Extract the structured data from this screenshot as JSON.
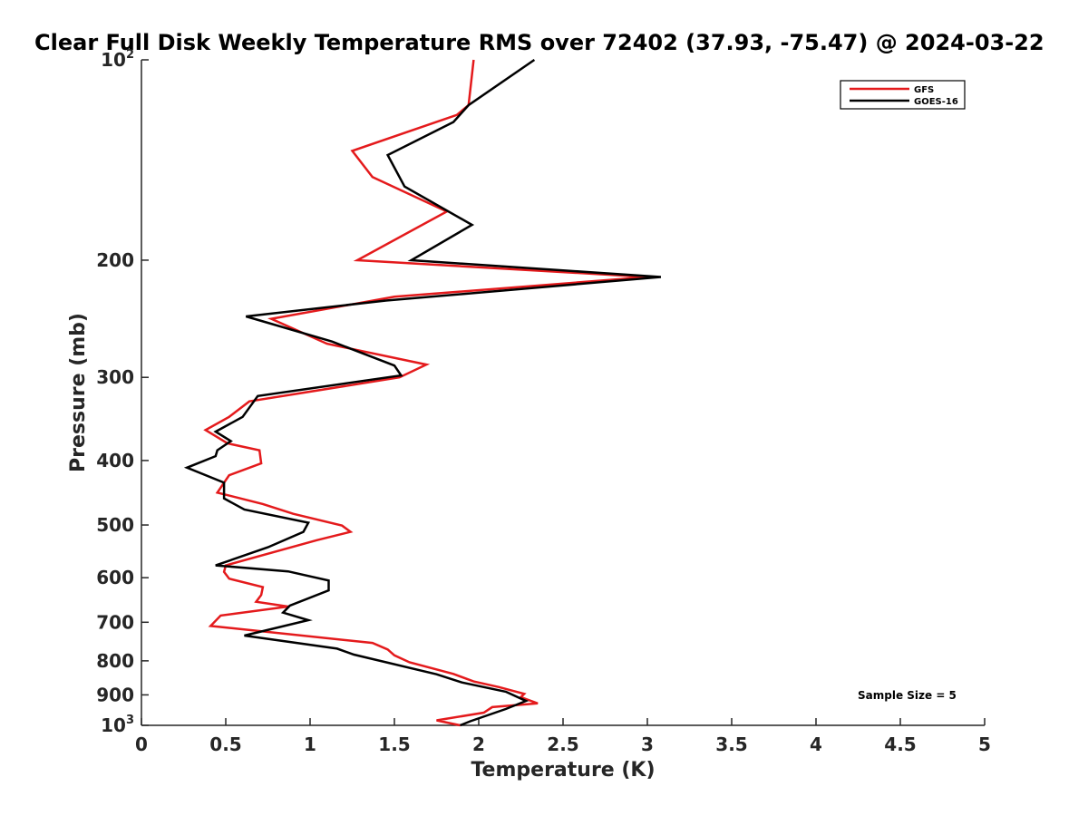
{
  "chart_data": {
    "type": "line",
    "title": "Clear Full Disk Weekly Temperature RMS over 72402 (37.93, -75.47) @ 2024-03-22",
    "xlabel": "Temperature (K)",
    "ylabel": "Pressure (mb)",
    "xlim": [
      0,
      5
    ],
    "ylim": [
      100,
      1000
    ],
    "y_scale": "log",
    "y_reversed": true,
    "x_ticks": [
      0,
      0.5,
      1,
      1.5,
      2,
      2.5,
      3,
      3.5,
      4,
      4.5,
      5
    ],
    "x_tick_labels": [
      "0",
      "0.5",
      "1",
      "1.5",
      "2",
      "2.5",
      "3",
      "3.5",
      "4",
      "4.5",
      "5"
    ],
    "y_ticks": [
      {
        "value": 100,
        "base": "10",
        "exp": "2"
      },
      {
        "value": 200,
        "base": "200",
        "exp": ""
      },
      {
        "value": 300,
        "base": "300",
        "exp": ""
      },
      {
        "value": 400,
        "base": "400",
        "exp": ""
      },
      {
        "value": 500,
        "base": "500",
        "exp": ""
      },
      {
        "value": 600,
        "base": "600",
        "exp": ""
      },
      {
        "value": 700,
        "base": "700",
        "exp": ""
      },
      {
        "value": 800,
        "base": "800",
        "exp": ""
      },
      {
        "value": 900,
        "base": "900",
        "exp": ""
      },
      {
        "value": 1000,
        "base": "10",
        "exp": "3"
      }
    ],
    "grid": false,
    "legend_position": "top-right",
    "annotation": "Sample Size = 5",
    "series": [
      {
        "name": "GFS",
        "color": "#e41a1c",
        "points": [
          [
            1.97,
            100
          ],
          [
            1.94,
            117
          ],
          [
            1.87,
            121
          ],
          [
            1.25,
            137
          ],
          [
            1.37,
            150
          ],
          [
            1.81,
            169
          ],
          [
            1.28,
            200
          ],
          [
            3.0,
            212
          ],
          [
            1.5,
            227
          ],
          [
            0.77,
            245
          ],
          [
            1.1,
            267
          ],
          [
            1.69,
            287
          ],
          [
            1.53,
            300
          ],
          [
            0.64,
            326
          ],
          [
            0.52,
            344
          ],
          [
            0.38,
            360
          ],
          [
            0.51,
            377
          ],
          [
            0.7,
            386
          ],
          [
            0.71,
            404
          ],
          [
            0.52,
            421
          ],
          [
            0.45,
            447
          ],
          [
            0.72,
            465
          ],
          [
            0.9,
            481
          ],
          [
            1.19,
            501
          ],
          [
            1.24,
            512
          ],
          [
            1.04,
            527
          ],
          [
            0.5,
            575
          ],
          [
            0.49,
            588
          ],
          [
            0.52,
            602
          ],
          [
            0.72,
            620
          ],
          [
            0.71,
            637
          ],
          [
            0.68,
            652
          ],
          [
            0.87,
            663
          ],
          [
            0.47,
            684
          ],
          [
            0.41,
            709
          ],
          [
            1.37,
            752
          ],
          [
            1.46,
            769
          ],
          [
            1.5,
            785
          ],
          [
            1.59,
            804
          ],
          [
            1.85,
            837
          ],
          [
            1.97,
            859
          ],
          [
            2.12,
            876
          ],
          [
            2.27,
            897
          ],
          [
            2.25,
            907
          ],
          [
            2.35,
            927
          ],
          [
            2.08,
            939
          ],
          [
            2.03,
            957
          ],
          [
            1.75,
            983
          ],
          [
            1.89,
            1000
          ]
        ]
      },
      {
        "name": "GOES-16",
        "color": "#000000",
        "points": [
          [
            2.33,
            100
          ],
          [
            1.94,
            117
          ],
          [
            1.85,
            124
          ],
          [
            1.46,
            139
          ],
          [
            1.56,
            155
          ],
          [
            1.96,
            177
          ],
          [
            1.6,
            200
          ],
          [
            3.08,
            212
          ],
          [
            1.45,
            230
          ],
          [
            0.62,
            243
          ],
          [
            1.13,
            265
          ],
          [
            1.5,
            288
          ],
          [
            1.54,
            298
          ],
          [
            0.69,
            320
          ],
          [
            0.6,
            344
          ],
          [
            0.44,
            362
          ],
          [
            0.53,
            374
          ],
          [
            0.45,
            386
          ],
          [
            0.44,
            394
          ],
          [
            0.27,
            410
          ],
          [
            0.49,
            432
          ],
          [
            0.49,
            456
          ],
          [
            0.61,
            474
          ],
          [
            0.99,
            496
          ],
          [
            0.96,
            512
          ],
          [
            0.75,
            540
          ],
          [
            0.44,
            575
          ],
          [
            0.87,
            587
          ],
          [
            1.11,
            606
          ],
          [
            1.11,
            627
          ],
          [
            0.88,
            661
          ],
          [
            0.84,
            677
          ],
          [
            0.99,
            695
          ],
          [
            0.61,
            733
          ],
          [
            1.16,
            767
          ],
          [
            1.26,
            783
          ],
          [
            1.75,
            838
          ],
          [
            1.9,
            862
          ],
          [
            2.16,
            890
          ],
          [
            2.28,
            919
          ],
          [
            2.16,
            945
          ],
          [
            1.95,
            986
          ],
          [
            1.89,
            1000
          ]
        ]
      }
    ]
  }
}
